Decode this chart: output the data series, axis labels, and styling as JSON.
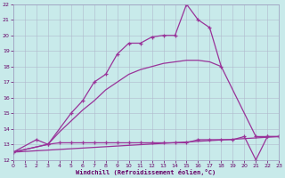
{
  "bg_color": "#c8eaea",
  "line_color": "#993399",
  "grid_color": "#b0b8cc",
  "xlabel": "Windchill (Refroidissement éolien,°C)",
  "ylim": [
    12,
    22
  ],
  "xlim": [
    0,
    23
  ],
  "yticks": [
    12,
    13,
    14,
    15,
    16,
    17,
    18,
    19,
    20,
    21,
    22
  ],
  "xticks": [
    0,
    1,
    2,
    3,
    4,
    5,
    6,
    7,
    8,
    9,
    10,
    11,
    12,
    13,
    14,
    15,
    16,
    17,
    18,
    19,
    20,
    21,
    22,
    23
  ],
  "series": [
    {
      "x": [
        0,
        3,
        5,
        6,
        7,
        8,
        9,
        10,
        11,
        12,
        13,
        14,
        15,
        16,
        17,
        18,
        21,
        22,
        23
      ],
      "y": [
        12.5,
        13.0,
        15.0,
        15.8,
        17.0,
        17.5,
        18.8,
        19.5,
        19.5,
        19.9,
        20.0,
        20.0,
        22.0,
        21.0,
        20.5,
        18.0,
        13.5,
        13.5,
        13.5
      ],
      "markers": true
    },
    {
      "x": [
        0,
        3,
        4,
        5,
        6,
        7,
        8,
        9,
        10,
        11,
        12,
        13,
        14,
        15,
        16,
        17,
        18
      ],
      "y": [
        12.5,
        13.0,
        13.8,
        14.5,
        15.2,
        15.8,
        16.5,
        17.0,
        17.5,
        17.8,
        18.0,
        18.2,
        18.3,
        18.4,
        18.4,
        18.3,
        18.0
      ],
      "markers": false
    },
    {
      "x": [
        0,
        2,
        3,
        4,
        5,
        6,
        7,
        8,
        9,
        10,
        11,
        12,
        13,
        14,
        15,
        16,
        17,
        18,
        19,
        20,
        21,
        22,
        23
      ],
      "y": [
        12.5,
        13.3,
        13.0,
        13.1,
        13.1,
        13.1,
        13.1,
        13.1,
        13.1,
        13.1,
        13.1,
        13.1,
        13.1,
        13.1,
        13.1,
        13.3,
        13.3,
        13.3,
        13.3,
        13.5,
        12.0,
        13.5,
        13.5
      ],
      "markers": true
    },
    {
      "x": [
        0,
        23
      ],
      "y": [
        12.5,
        13.5
      ],
      "markers": false
    }
  ]
}
